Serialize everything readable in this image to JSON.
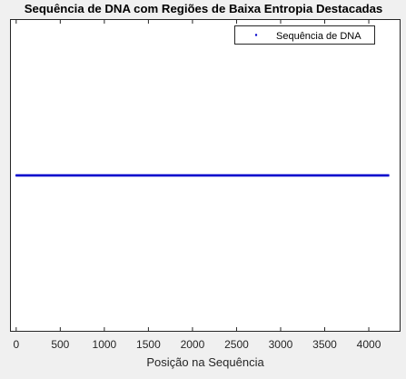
{
  "chart_data": {
    "type": "scatter",
    "title": "Sequência de DNA com Regiões de Baixa Entropia Destacadas",
    "xlabel": "Posição na Sequência",
    "ylabel": "",
    "xlim": [
      -60,
      4350
    ],
    "ylim": [
      -1,
      1
    ],
    "xticks": [
      0,
      500,
      1000,
      1500,
      2000,
      2500,
      3000,
      3500,
      4000
    ],
    "x_tick_labels": [
      "0",
      "500",
      "1000",
      "1500",
      "2000",
      "2500",
      "3000",
      "3500",
      "4000"
    ],
    "yticks_visible": false,
    "grid": false,
    "legend_position": "top-right",
    "series": [
      {
        "name": "Sequência de DNA",
        "marker": "point",
        "color": "#0000cc",
        "x_range": [
          0,
          4230
        ],
        "y": 0
      }
    ]
  }
}
